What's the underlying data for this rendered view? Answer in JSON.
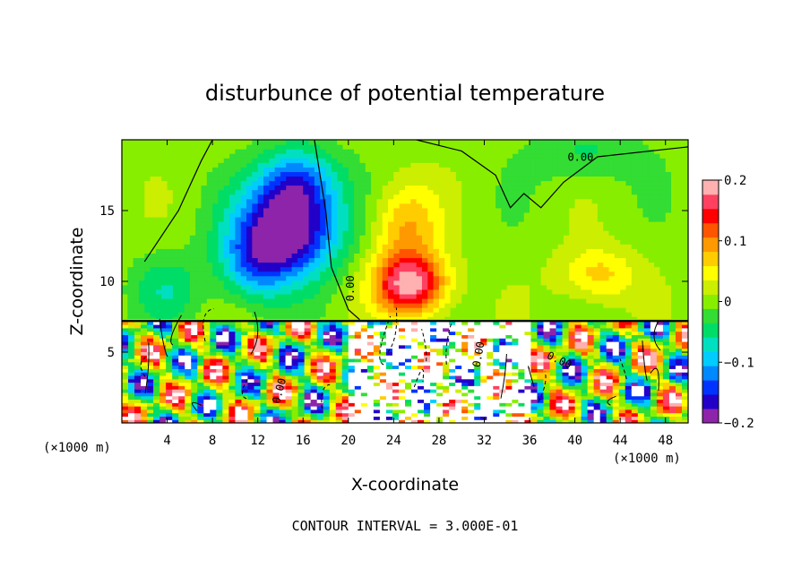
{
  "chart_data": {
    "type": "heatmap",
    "title": "disturbunce of potential temperature",
    "xlabel": "X-coordinate",
    "ylabel": "Z-coordinate",
    "x_unit": "(×1000 m)",
    "z_unit": "(×1000 m)",
    "xlim": [
      0,
      50
    ],
    "ylim": [
      0,
      20
    ],
    "x_ticks": [
      4,
      8,
      12,
      16,
      20,
      24,
      28,
      32,
      36,
      40,
      44,
      48
    ],
    "y_ticks": [
      5,
      10,
      15
    ],
    "colorbar": {
      "range": [
        -0.2,
        0.2
      ],
      "ticks": [
        {
          "value": 0.2,
          "label": "0.2"
        },
        {
          "value": 0.1,
          "label": "0.1"
        },
        {
          "value": 0.0,
          "label": "0"
        },
        {
          "value": -0.1,
          "label": "−0.1"
        },
        {
          "value": -0.2,
          "label": "−0.2"
        }
      ],
      "colors": [
        "#8e24aa",
        "#2200c8",
        "#0033ff",
        "#0088ff",
        "#00ccff",
        "#00e0c0",
        "#00dd66",
        "#33dd33",
        "#88ee00",
        "#ccee00",
        "#ffff00",
        "#ffcc00",
        "#ff9900",
        "#ff5500",
        "#ff0000",
        "#ff4060",
        "#ffb0b0"
      ]
    },
    "contour_labels": [
      "0.00",
      "0.00",
      "0.00",
      "0.00",
      "0.00"
    ],
    "contour_interval_note": "CONTOUR INTERVAL = 3.000E-01",
    "fields": {
      "upper_features": [
        {
          "kind": "cold",
          "x": 14.5,
          "z": 13.5,
          "sx": 4.5,
          "sz": 3.2,
          "amp": -0.21
        },
        {
          "kind": "cold",
          "x": 15.5,
          "z": 17.0,
          "sx": 3.5,
          "sz": 2.5,
          "amp": -0.12
        },
        {
          "kind": "cold",
          "x": 11.5,
          "z": 11.0,
          "sx": 3.0,
          "sz": 2.5,
          "amp": -0.08
        },
        {
          "kind": "warm",
          "x": 25.5,
          "z": 9.8,
          "sx": 3.2,
          "sz": 2.2,
          "amp": 0.19
        },
        {
          "kind": "warm",
          "x": 25.0,
          "z": 14.0,
          "sx": 3.0,
          "sz": 3.0,
          "amp": 0.08
        },
        {
          "kind": "warm",
          "x": 42.0,
          "z": 10.5,
          "sx": 3.5,
          "sz": 2.0,
          "amp": 0.07
        },
        {
          "kind": "cold",
          "x": 41.0,
          "z": 19.0,
          "sx": 5.0,
          "sz": 2.0,
          "amp": -0.04
        },
        {
          "kind": "cold",
          "x": 4.0,
          "z": 9.5,
          "sx": 3.0,
          "sz": 2.5,
          "amp": -0.05
        }
      ],
      "interface_z": 7.2
    }
  }
}
